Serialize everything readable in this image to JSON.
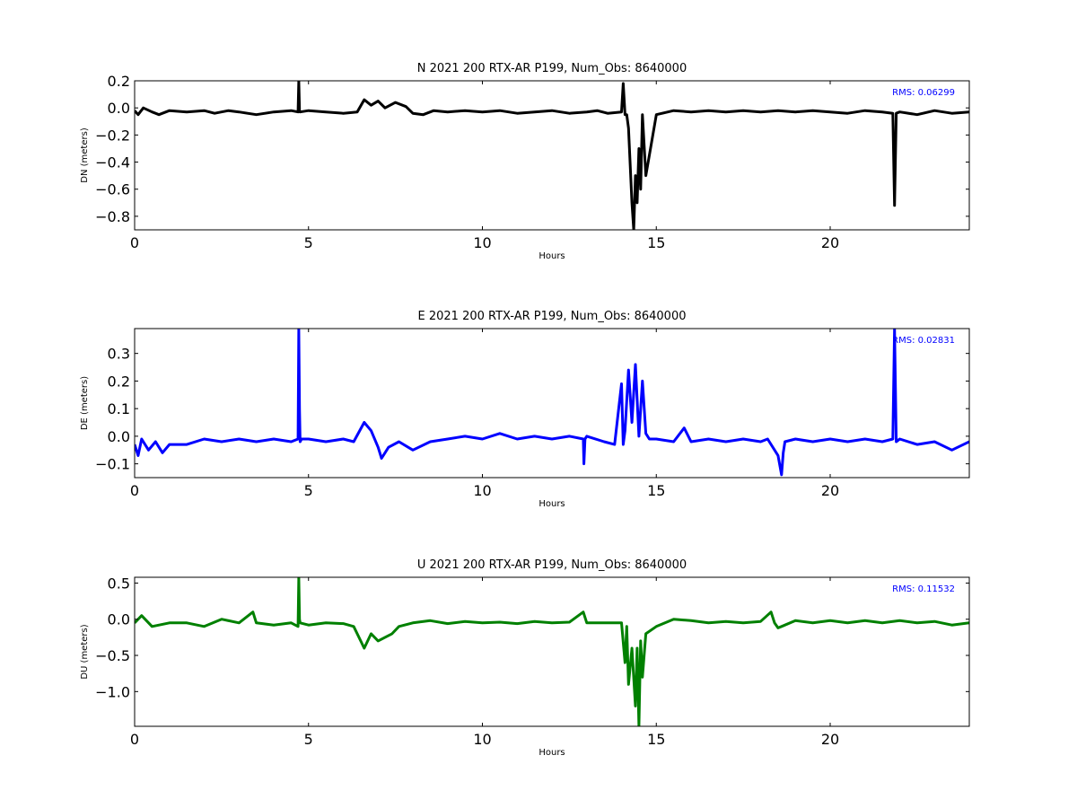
{
  "chart_data": [
    {
      "type": "line",
      "title": "N 2021 200 RTX-AR  P199, Num_Obs: 8640000",
      "xlabel": "Hours",
      "ylabel": "DN (meters)",
      "xlim": [
        0,
        24
      ],
      "ylim": [
        -0.9,
        0.2
      ],
      "xticks": [
        0,
        5,
        10,
        15,
        20
      ],
      "xtick_labels": [
        "0",
        "5",
        "10",
        "15",
        "20"
      ],
      "yticks": [
        0.2,
        0.0,
        -0.2,
        -0.4,
        -0.6,
        -0.8
      ],
      "ytick_labels": [
        "0.2",
        "0.0",
        "−0.2",
        "−0.4",
        "−0.6",
        "−0.8"
      ],
      "grid": false,
      "annotation": {
        "text": "RMS:  0.06299",
        "color": "#0000ff"
      },
      "series": [
        {
          "color": "#000000",
          "x": [
            0.0,
            0.1,
            0.25,
            0.5,
            0.7,
            1.0,
            1.5,
            2.0,
            2.3,
            2.7,
            3.0,
            3.5,
            4.0,
            4.5,
            4.7,
            4.72,
            4.74,
            4.76,
            5.0,
            5.5,
            6.0,
            6.4,
            6.6,
            6.8,
            7.0,
            7.2,
            7.5,
            7.8,
            8.0,
            8.3,
            8.6,
            9.0,
            9.5,
            10.0,
            10.5,
            11.0,
            11.5,
            12.0,
            12.5,
            13.0,
            13.3,
            13.6,
            14.0,
            14.05,
            14.1,
            14.15,
            14.2,
            14.3,
            14.35,
            14.4,
            14.45,
            14.5,
            14.55,
            14.6,
            14.7,
            15.0,
            15.5,
            16.0,
            16.5,
            17.0,
            17.5,
            18.0,
            18.5,
            19.0,
            19.5,
            20.0,
            20.5,
            21.0,
            21.5,
            21.8,
            21.85,
            21.9,
            22.0,
            22.5,
            23.0,
            23.5,
            24.0
          ],
          "y": [
            -0.02,
            -0.05,
            0.0,
            -0.03,
            -0.05,
            -0.02,
            -0.03,
            -0.02,
            -0.04,
            -0.02,
            -0.03,
            -0.05,
            -0.03,
            -0.02,
            -0.03,
            0.2,
            -0.02,
            -0.03,
            -0.02,
            -0.03,
            -0.04,
            -0.03,
            0.06,
            0.02,
            0.05,
            0.0,
            0.04,
            0.01,
            -0.04,
            -0.05,
            -0.02,
            -0.03,
            -0.02,
            -0.03,
            -0.02,
            -0.04,
            -0.03,
            -0.02,
            -0.04,
            -0.03,
            -0.02,
            -0.04,
            -0.03,
            0.18,
            -0.05,
            -0.05,
            -0.15,
            -0.7,
            -0.9,
            -0.5,
            -0.7,
            -0.3,
            -0.6,
            -0.05,
            -0.5,
            -0.05,
            -0.02,
            -0.03,
            -0.02,
            -0.03,
            -0.02,
            -0.03,
            -0.02,
            -0.03,
            -0.02,
            -0.03,
            -0.04,
            -0.02,
            -0.03,
            -0.04,
            -0.72,
            -0.04,
            -0.03,
            -0.05,
            -0.02,
            -0.04,
            -0.03
          ]
        }
      ]
    },
    {
      "type": "line",
      "title": "E 2021 200 RTX-AR  P199, Num_Obs: 8640000",
      "xlabel": "Hours",
      "ylabel": "DE (meters)",
      "xlim": [
        0,
        24
      ],
      "ylim": [
        -0.15,
        0.39
      ],
      "xticks": [
        0,
        5,
        10,
        15,
        20
      ],
      "xtick_labels": [
        "0",
        "5",
        "10",
        "15",
        "20"
      ],
      "yticks": [
        0.3,
        0.2,
        0.1,
        0.0,
        -0.1
      ],
      "ytick_labels": [
        "0.3",
        "0.2",
        "0.1",
        "0.0",
        "−0.1"
      ],
      "grid": false,
      "annotation": {
        "text": "RMS:  0.02831",
        "color": "#0000ff"
      },
      "series": [
        {
          "color": "#0000ff",
          "x": [
            0.0,
            0.1,
            0.2,
            0.4,
            0.6,
            0.8,
            1.0,
            1.5,
            2.0,
            2.5,
            3.0,
            3.5,
            4.0,
            4.5,
            4.7,
            4.72,
            4.74,
            4.76,
            4.8,
            5.0,
            5.5,
            6.0,
            6.3,
            6.6,
            6.8,
            7.0,
            7.1,
            7.3,
            7.6,
            8.0,
            8.5,
            9.0,
            9.5,
            10.0,
            10.5,
            11.0,
            11.5,
            12.0,
            12.5,
            12.9,
            12.92,
            12.95,
            13.0,
            13.5,
            13.8,
            14.0,
            14.05,
            14.1,
            14.2,
            14.3,
            14.4,
            14.5,
            14.6,
            14.7,
            14.8,
            15.0,
            15.5,
            15.8,
            16.0,
            16.5,
            17.0,
            17.5,
            18.0,
            18.2,
            18.5,
            18.6,
            18.65,
            18.7,
            19.0,
            19.5,
            20.0,
            20.5,
            21.0,
            21.5,
            21.8,
            21.85,
            21.9,
            22.0,
            22.5,
            23.0,
            23.5,
            24.0
          ],
          "y": [
            -0.03,
            -0.07,
            -0.01,
            -0.05,
            -0.02,
            -0.06,
            -0.03,
            -0.03,
            -0.01,
            -0.02,
            -0.01,
            -0.02,
            -0.01,
            -0.02,
            -0.01,
            0.39,
            0.1,
            -0.02,
            -0.01,
            -0.01,
            -0.02,
            -0.01,
            -0.02,
            0.05,
            0.02,
            -0.04,
            -0.08,
            -0.04,
            -0.02,
            -0.05,
            -0.02,
            -0.01,
            0.0,
            -0.01,
            0.01,
            -0.01,
            0.0,
            -0.01,
            0.0,
            -0.01,
            -0.1,
            -0.01,
            0.0,
            -0.02,
            -0.03,
            0.19,
            -0.03,
            0.02,
            0.24,
            0.05,
            0.26,
            0.0,
            0.2,
            0.01,
            -0.01,
            -0.01,
            -0.02,
            0.03,
            -0.02,
            -0.01,
            -0.02,
            -0.01,
            -0.02,
            -0.01,
            -0.07,
            -0.14,
            -0.06,
            -0.02,
            -0.01,
            -0.02,
            -0.01,
            -0.02,
            -0.01,
            -0.02,
            -0.01,
            0.39,
            -0.02,
            -0.01,
            -0.03,
            -0.02,
            -0.05,
            -0.02
          ]
        }
      ]
    },
    {
      "type": "line",
      "title": "U 2021 200 RTX-AR  P199, Num_Obs: 8640000",
      "xlabel": "Hours",
      "ylabel": "DU (meters)",
      "xlim": [
        0,
        24
      ],
      "ylim": [
        -1.48,
        0.58
      ],
      "xticks": [
        0,
        5,
        10,
        15,
        20
      ],
      "xtick_labels": [
        "0",
        "5",
        "10",
        "15",
        "20"
      ],
      "yticks": [
        0.5,
        0.0,
        -0.5,
        -1.0
      ],
      "ytick_labels": [
        "0.5",
        "0.0",
        "−0.5",
        "−1.0"
      ],
      "grid": false,
      "annotation": {
        "text": "RMS:  0.11532",
        "color": "#0000ff"
      },
      "series": [
        {
          "color": "#008000",
          "x": [
            0.0,
            0.2,
            0.5,
            1.0,
            1.5,
            2.0,
            2.5,
            3.0,
            3.4,
            3.5,
            4.0,
            4.5,
            4.7,
            4.72,
            4.74,
            4.76,
            5.0,
            5.5,
            6.0,
            6.3,
            6.5,
            6.6,
            6.8,
            7.0,
            7.2,
            7.4,
            7.6,
            8.0,
            8.5,
            9.0,
            9.5,
            10.0,
            10.5,
            11.0,
            11.5,
            12.0,
            12.5,
            12.9,
            13.0,
            13.5,
            14.0,
            14.1,
            14.15,
            14.2,
            14.3,
            14.4,
            14.45,
            14.5,
            14.55,
            14.6,
            14.7,
            15.0,
            15.5,
            16.0,
            16.5,
            17.0,
            17.5,
            18.0,
            18.3,
            18.4,
            18.5,
            18.6,
            19.0,
            19.5,
            20.0,
            20.5,
            21.0,
            21.5,
            22.0,
            22.5,
            23.0,
            23.5,
            24.0
          ],
          "y": [
            -0.05,
            0.05,
            -0.1,
            -0.05,
            -0.05,
            -0.1,
            0.0,
            -0.05,
            0.1,
            -0.05,
            -0.08,
            -0.05,
            -0.1,
            0.58,
            0.0,
            -0.05,
            -0.08,
            -0.05,
            -0.06,
            -0.1,
            -0.3,
            -0.4,
            -0.2,
            -0.3,
            -0.25,
            -0.2,
            -0.1,
            -0.05,
            -0.02,
            -0.06,
            -0.03,
            -0.05,
            -0.04,
            -0.06,
            -0.03,
            -0.05,
            -0.04,
            0.1,
            -0.05,
            -0.05,
            -0.05,
            -0.6,
            -0.1,
            -0.9,
            -0.4,
            -1.2,
            -0.4,
            -1.48,
            -0.3,
            -0.8,
            -0.2,
            -0.1,
            0.0,
            -0.02,
            -0.05,
            -0.03,
            -0.05,
            -0.03,
            0.1,
            -0.05,
            -0.12,
            -0.1,
            -0.02,
            -0.05,
            -0.02,
            -0.05,
            -0.02,
            -0.05,
            -0.02,
            -0.05,
            -0.03,
            -0.08,
            -0.05
          ]
        }
      ]
    }
  ]
}
